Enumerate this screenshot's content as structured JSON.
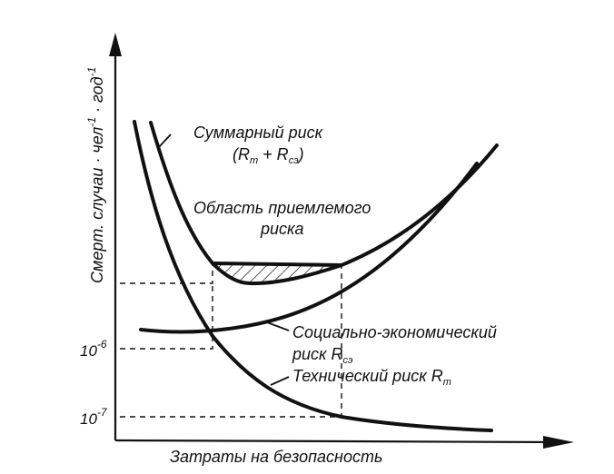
{
  "y_axis_label": {
    "main": "Смерт. случаи · чел",
    "exp1": "-1",
    "mid": " · год",
    "exp2": "-1"
  },
  "x_axis_label": "Затраты на безопасность",
  "y_ticks": [
    {
      "base": "10",
      "exp": "-6"
    },
    {
      "base": "10",
      "exp": "-7"
    }
  ],
  "curves": {
    "total": {
      "line1": "Суммарный риск",
      "open": "(R",
      "s1": "т",
      "plus": " + R",
      "s2": "сэ",
      "close": ")"
    },
    "acceptable": {
      "line1": "Область приемлемого",
      "line2": "риска"
    },
    "social": {
      "line1": "Социально-экономический",
      "line2": "риск R",
      "sub": "сэ"
    },
    "technical": {
      "line1": "Технический риск R",
      "sub": "т"
    }
  }
}
